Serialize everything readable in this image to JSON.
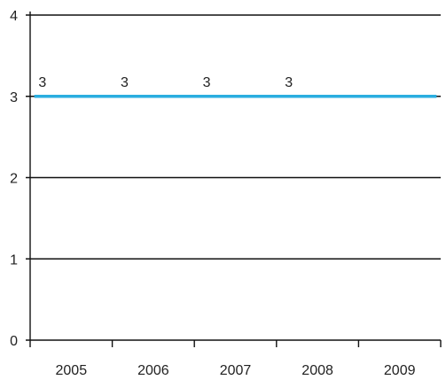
{
  "chart_data": {
    "type": "line",
    "title": "",
    "xlabel": "",
    "ylabel": "",
    "categories": [
      "2005",
      "2006",
      "2007",
      "2008",
      "2009"
    ],
    "ylim": [
      0,
      4
    ],
    "yticks": [
      "0",
      "1",
      "2",
      "3",
      "4"
    ],
    "grid": true,
    "legend": "none",
    "series": [
      {
        "color": "#2aaee0",
        "points": [
          {
            "x": "2005",
            "y": 3,
            "label": "3"
          },
          {
            "x": "2006",
            "y": 3,
            "label": "3"
          },
          {
            "x": "2007",
            "y": 3,
            "label": "3"
          },
          {
            "x": "2008",
            "y": 3,
            "label": "3"
          },
          {
            "x": "2009",
            "y": 3
          }
        ]
      }
    ]
  }
}
